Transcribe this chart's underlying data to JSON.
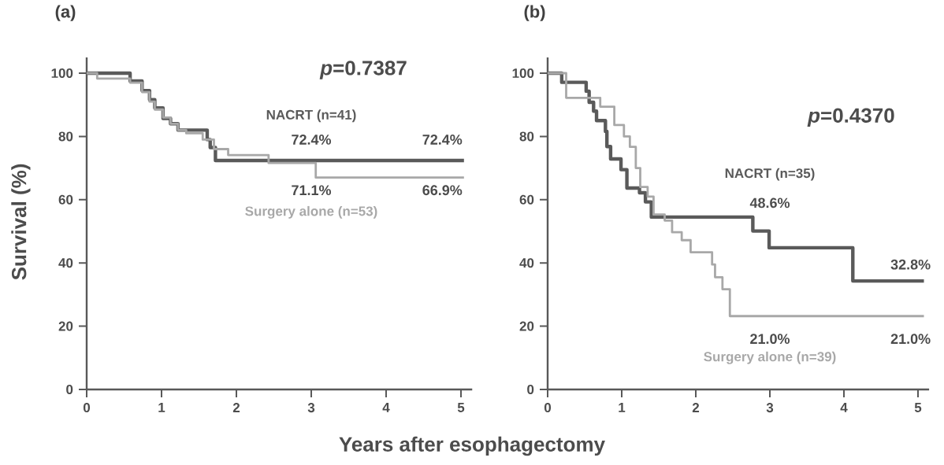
{
  "chart_data": [
    {
      "type": "step",
      "title": "(a)",
      "ylabel": "Survival  (%)",
      "xlabel": "Years after esophagectomy",
      "xlim": [
        0,
        5.15
      ],
      "ylim": [
        0,
        105
      ],
      "xticks": [
        0,
        1,
        2,
        3,
        4,
        5
      ],
      "yticks": [
        0,
        20,
        40,
        60,
        80,
        100
      ],
      "series": [
        {
          "name": "NACRT (n=41)",
          "color": "#5a5a5a",
          "x": [
            0,
            0.58,
            0.74,
            0.84,
            0.91,
            1.02,
            1.12,
            1.22,
            1.33,
            1.61,
            1.65,
            1.72,
            1.79,
            5.04
          ],
          "values": [
            100,
            97.5,
            94.5,
            91.6,
            89,
            85.7,
            84,
            82,
            82,
            79,
            76.5,
            72.4,
            72.4,
            72.4
          ]
        },
        {
          "name": "Surgery alone (n=53)",
          "color": "#a8a8a8",
          "x": [
            0,
            0.14,
            0.58,
            0.74,
            0.84,
            0.91,
            1.02,
            1.12,
            1.22,
            1.33,
            1.55,
            1.7,
            1.89,
            2.43,
            3.06,
            5.04
          ],
          "values": [
            100,
            98.3,
            97,
            94,
            91,
            88.5,
            86,
            84,
            82,
            81,
            79,
            76,
            74.1,
            71.6,
            67,
            67
          ]
        }
      ],
      "annotations": [
        "*p*=0.7387",
        "72.4%",
        "72.4%",
        "71.1%",
        "66.9%"
      ]
    },
    {
      "type": "step",
      "title": "(b)",
      "xlim": [
        0,
        5.15
      ],
      "ylim": [
        0,
        105
      ],
      "xticks": [
        0,
        1,
        2,
        3,
        4,
        5
      ],
      "yticks": [
        0,
        20,
        40,
        60,
        80,
        100
      ],
      "series": [
        {
          "name": "NACRT (n=35)",
          "color": "#5a5a5a",
          "x": [
            0,
            0.19,
            0.52,
            0.56,
            0.62,
            0.66,
            0.78,
            0.8,
            0.85,
            0.99,
            1.07,
            1.24,
            1.32,
            1.4,
            2.77,
            2.99,
            4.12,
            5.08
          ],
          "values": [
            100,
            97.1,
            94.3,
            90.8,
            88,
            85,
            81.6,
            76.8,
            72.9,
            69.5,
            63.7,
            62.2,
            59.3,
            54.5,
            50.1,
            44.8,
            34.3,
            34.3
          ]
        },
        {
          "name": "Surgery alone (n=39)",
          "color": "#a8a8a8",
          "x": [
            0,
            0.25,
            0.71,
            0.9,
            1.03,
            1.11,
            1.19,
            1.25,
            1.35,
            1.43,
            1.58,
            1.68,
            1.81,
            1.93,
            2.22,
            2.26,
            2.36,
            2.46,
            5.08
          ],
          "values": [
            100,
            92.2,
            89.4,
            83.6,
            80,
            76.7,
            70,
            64,
            61,
            55.3,
            53.4,
            49.7,
            47.2,
            43.4,
            39.5,
            35.5,
            31.7,
            23.2,
            23.2
          ]
        }
      ],
      "annotations": [
        "*p*=0.4370",
        "48.6%",
        "32.8%",
        "21.0%",
        "21.0%"
      ]
    }
  ]
}
